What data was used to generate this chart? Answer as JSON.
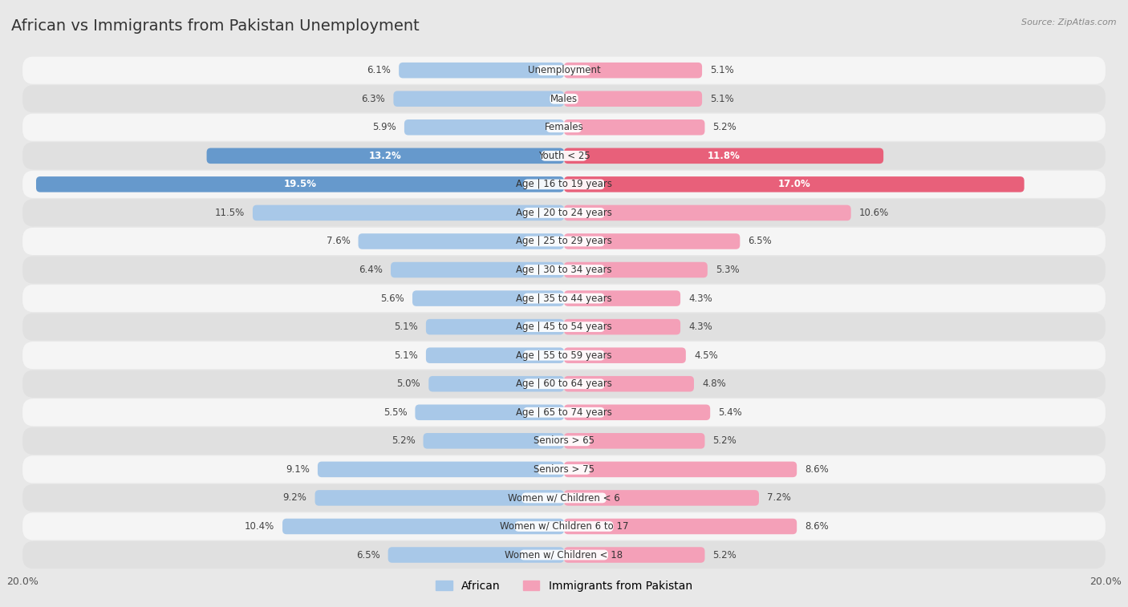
{
  "title": "African vs Immigrants from Pakistan Unemployment",
  "source": "Source: ZipAtlas.com",
  "categories": [
    "Unemployment",
    "Males",
    "Females",
    "Youth < 25",
    "Age | 16 to 19 years",
    "Age | 20 to 24 years",
    "Age | 25 to 29 years",
    "Age | 30 to 34 years",
    "Age | 35 to 44 years",
    "Age | 45 to 54 years",
    "Age | 55 to 59 years",
    "Age | 60 to 64 years",
    "Age | 65 to 74 years",
    "Seniors > 65",
    "Seniors > 75",
    "Women w/ Children < 6",
    "Women w/ Children 6 to 17",
    "Women w/ Children < 18"
  ],
  "african_values": [
    6.1,
    6.3,
    5.9,
    13.2,
    19.5,
    11.5,
    7.6,
    6.4,
    5.6,
    5.1,
    5.1,
    5.0,
    5.5,
    5.2,
    9.1,
    9.2,
    10.4,
    6.5
  ],
  "pakistan_values": [
    5.1,
    5.1,
    5.2,
    11.8,
    17.0,
    10.6,
    6.5,
    5.3,
    4.3,
    4.3,
    4.5,
    4.8,
    5.4,
    5.2,
    8.6,
    7.2,
    8.6,
    5.2
  ],
  "african_color": "#a8c8e8",
  "pakistan_color": "#f4a0b8",
  "african_highlight_color": "#6699cc",
  "pakistan_highlight_color": "#e8607a",
  "african_label_highlight": "#5588bb",
  "bg_color": "#e8e8e8",
  "row_light_color": "#f5f5f5",
  "row_dark_color": "#e0e0e0",
  "xlim": 20.0,
  "bar_height": 0.55,
  "label_fontsize": 8.5,
  "title_fontsize": 14,
  "legend_fontsize": 10,
  "value_fontsize": 8.5
}
